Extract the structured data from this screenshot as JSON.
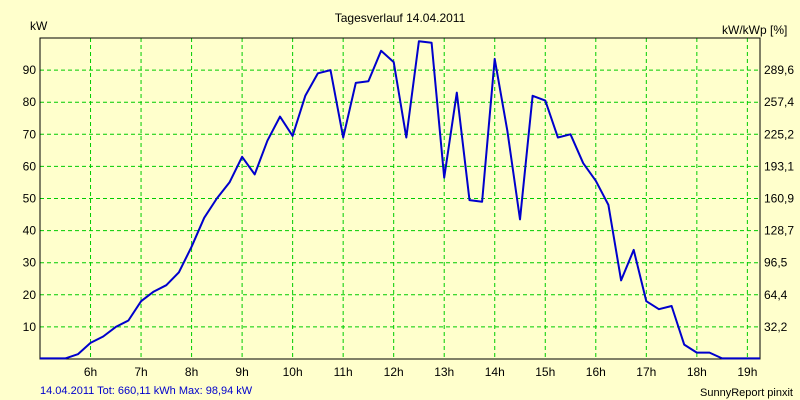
{
  "colors": {
    "background": "#ffffcc",
    "grid": "#00cc00",
    "series": "#0000cc",
    "footer_left": "#0000cc",
    "text": "#000000"
  },
  "chart_data": {
    "type": "line",
    "title": "Tagesverlauf 14.04.2011",
    "ylabel": "kW",
    "ylabel_right": "kW/kWp [%]",
    "xlabel": "",
    "x_unit": "hour",
    "xlim": [
      5.0,
      19.25
    ],
    "ylim": [
      0,
      100
    ],
    "x_ticks": [
      {
        "value": 6,
        "label": "6h"
      },
      {
        "value": 7,
        "label": "7h"
      },
      {
        "value": 8,
        "label": "8h"
      },
      {
        "value": 9,
        "label": "9h"
      },
      {
        "value": 10,
        "label": "10h"
      },
      {
        "value": 11,
        "label": "11h"
      },
      {
        "value": 12,
        "label": "12h"
      },
      {
        "value": 13,
        "label": "13h"
      },
      {
        "value": 14,
        "label": "14h"
      },
      {
        "value": 15,
        "label": "15h"
      },
      {
        "value": 16,
        "label": "16h"
      },
      {
        "value": 17,
        "label": "17h"
      },
      {
        "value": 18,
        "label": "18h"
      },
      {
        "value": 19,
        "label": "19h"
      }
    ],
    "y_ticks_left": [
      {
        "value": 10,
        "label": "10"
      },
      {
        "value": 20,
        "label": "20"
      },
      {
        "value": 30,
        "label": "30"
      },
      {
        "value": 40,
        "label": "40"
      },
      {
        "value": 50,
        "label": "50"
      },
      {
        "value": 60,
        "label": "60"
      },
      {
        "value": 70,
        "label": "70"
      },
      {
        "value": 80,
        "label": "80"
      },
      {
        "value": 90,
        "label": "90"
      }
    ],
    "y_ticks_right": [
      {
        "value": 10,
        "label": "32,2"
      },
      {
        "value": 20,
        "label": "64,4"
      },
      {
        "value": 30,
        "label": "96,5"
      },
      {
        "value": 40,
        "label": "128,7"
      },
      {
        "value": 50,
        "label": "160,9"
      },
      {
        "value": 60,
        "label": "193,1"
      },
      {
        "value": 70,
        "label": "225,2"
      },
      {
        "value": 80,
        "label": "257,4"
      },
      {
        "value": 90,
        "label": "289,6"
      }
    ],
    "grid": true,
    "series": [
      {
        "name": "kW",
        "x": [
          5.0,
          5.5,
          5.75,
          6.0,
          6.25,
          6.5,
          6.75,
          7.0,
          7.25,
          7.5,
          7.75,
          8.0,
          8.25,
          8.5,
          8.75,
          9.0,
          9.25,
          9.5,
          9.75,
          10.0,
          10.25,
          10.5,
          10.75,
          11.0,
          11.25,
          11.5,
          11.75,
          12.0,
          12.25,
          12.5,
          12.75,
          13.0,
          13.25,
          13.5,
          13.75,
          14.0,
          14.25,
          14.5,
          14.75,
          15.0,
          15.25,
          15.5,
          15.75,
          16.0,
          16.25,
          16.5,
          16.75,
          17.0,
          17.25,
          17.5,
          17.75,
          18.0,
          18.25,
          18.5,
          18.75,
          19.0,
          19.25
        ],
        "values": [
          0.2,
          0.2,
          1.5,
          5,
          7,
          10,
          12,
          18,
          21,
          23,
          27,
          35,
          44,
          50,
          55,
          63,
          57.5,
          68,
          75.5,
          69.5,
          82,
          89,
          90,
          69,
          86,
          86.5,
          96,
          92.5,
          69,
          99,
          98.5,
          56.5,
          83,
          49.5,
          49,
          93.5,
          71,
          43.5,
          82,
          80.5,
          69,
          70,
          61,
          55.5,
          48,
          24.5,
          34,
          18,
          15.5,
          16.5,
          4.5,
          2,
          2,
          0.2,
          0.2,
          0.2,
          0.2
        ]
      }
    ]
  },
  "footer": {
    "left": "14.04.2011 Tot: 660,11 kWh Max: 98,94 kW",
    "right": "SunnyReport pinxit"
  }
}
